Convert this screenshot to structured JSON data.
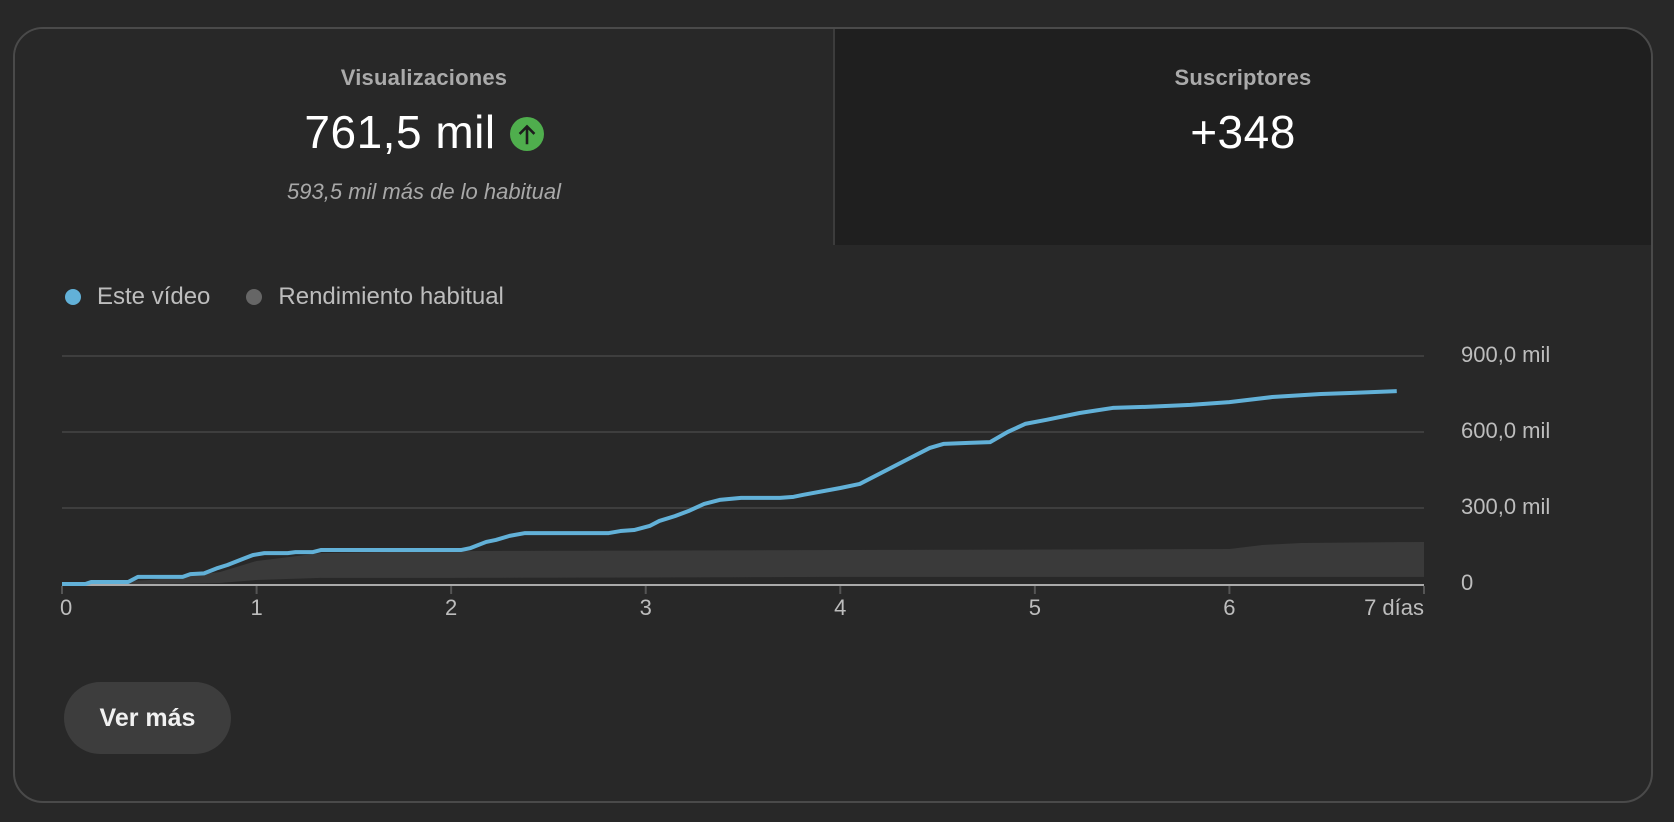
{
  "metrics": {
    "views": {
      "title": "Visualizaciones",
      "value": "761,5 mil",
      "trend_icon": "arrow-up-icon",
      "trend_color": "#4fae4d",
      "comparison": "593,5 mil más de lo habitual"
    },
    "subscribers": {
      "title": "Suscriptores",
      "value": "+348"
    }
  },
  "legend": [
    {
      "label": "Este vídeo",
      "color": "#62b1d8"
    },
    {
      "label": "Rendimiento habitual",
      "color": "#666666"
    }
  ],
  "y_axis": {
    "ticks": [
      "900,0 mil",
      "600,0 mil",
      "300,0 mil",
      "0"
    ]
  },
  "x_axis": {
    "ticks": [
      "0",
      "1",
      "2",
      "3",
      "4",
      "5",
      "6",
      "7 días"
    ]
  },
  "more_button": {
    "label": "Ver más"
  },
  "chart_data": {
    "type": "line",
    "title": "Visualizaciones — primeros 7 días",
    "xlabel": "días",
    "ylabel": "Visualizaciones",
    "xlim": [
      0,
      7
    ],
    "ylim": [
      0,
      900000
    ],
    "yticks": [
      0,
      300000,
      600000,
      900000
    ],
    "ytick_labels": [
      "0",
      "300,0 mil",
      "600,0 mil",
      "900,0 mil"
    ],
    "xticks": [
      0,
      1,
      2,
      3,
      4,
      5,
      6,
      7
    ],
    "xtick_labels": [
      "0",
      "1",
      "2",
      "3",
      "4",
      "5",
      "6",
      "7 días"
    ],
    "grid": true,
    "legend_position": "top-left",
    "y_axis_position": "right",
    "series": [
      {
        "name": "Este vídeo",
        "color": "#62b1d8",
        "x": [
          0,
          0.12,
          0.15,
          0.34,
          0.39,
          0.62,
          0.66,
          0.73,
          0.8,
          0.85,
          0.93,
          0.98,
          1.04,
          1.16,
          1.2,
          1.29,
          1.33,
          1.69,
          1.9,
          2.05,
          2.1,
          2.18,
          2.23,
          2.3,
          2.38,
          2.45,
          2.81,
          2.87,
          2.94,
          3.02,
          3.07,
          3.15,
          3.22,
          3.3,
          3.38,
          3.49,
          3.69,
          3.76,
          3.81,
          4.0,
          4.1,
          4.35,
          4.46,
          4.53,
          4.66,
          4.77,
          4.86,
          4.95,
          5.06,
          5.23,
          5.4,
          5.6,
          5.8,
          6.0,
          6.22,
          6.47,
          6.62,
          6.86
        ],
        "y": [
          0,
          0,
          8000,
          8000,
          28000,
          28000,
          39000,
          42000,
          63000,
          75000,
          99000,
          114000,
          122000,
          122000,
          126000,
          126000,
          134000,
          134000,
          134000,
          134000,
          142000,
          166000,
          174000,
          190000,
          201000,
          201000,
          201000,
          209000,
          213000,
          229000,
          249000,
          268000,
          288000,
          316000,
          332000,
          340000,
          340000,
          344000,
          352000,
          379000,
          395000,
          494000,
          537000,
          553000,
          557000,
          560000,
          600000,
          632000,
          648000,
          675000,
          695000,
          700000,
          707000,
          718000,
          738000,
          750000,
          754000,
          761500
        ]
      },
      {
        "name": "Rendimiento habitual",
        "color": "#666666",
        "type": "band",
        "x": [
          0,
          0.45,
          0.81,
          1.0,
          1.33,
          2.0,
          4.0,
          6.0,
          6.17,
          6.37,
          7.0
        ],
        "upper": [
          0,
          16000,
          47000,
          91000,
          122000,
          130000,
          134000,
          138000,
          154000,
          162000,
          166000
        ],
        "lower": [
          0,
          0,
          4000,
          16000,
          24000,
          24000,
          28000,
          28000,
          28000,
          28000,
          28000
        ]
      }
    ]
  }
}
